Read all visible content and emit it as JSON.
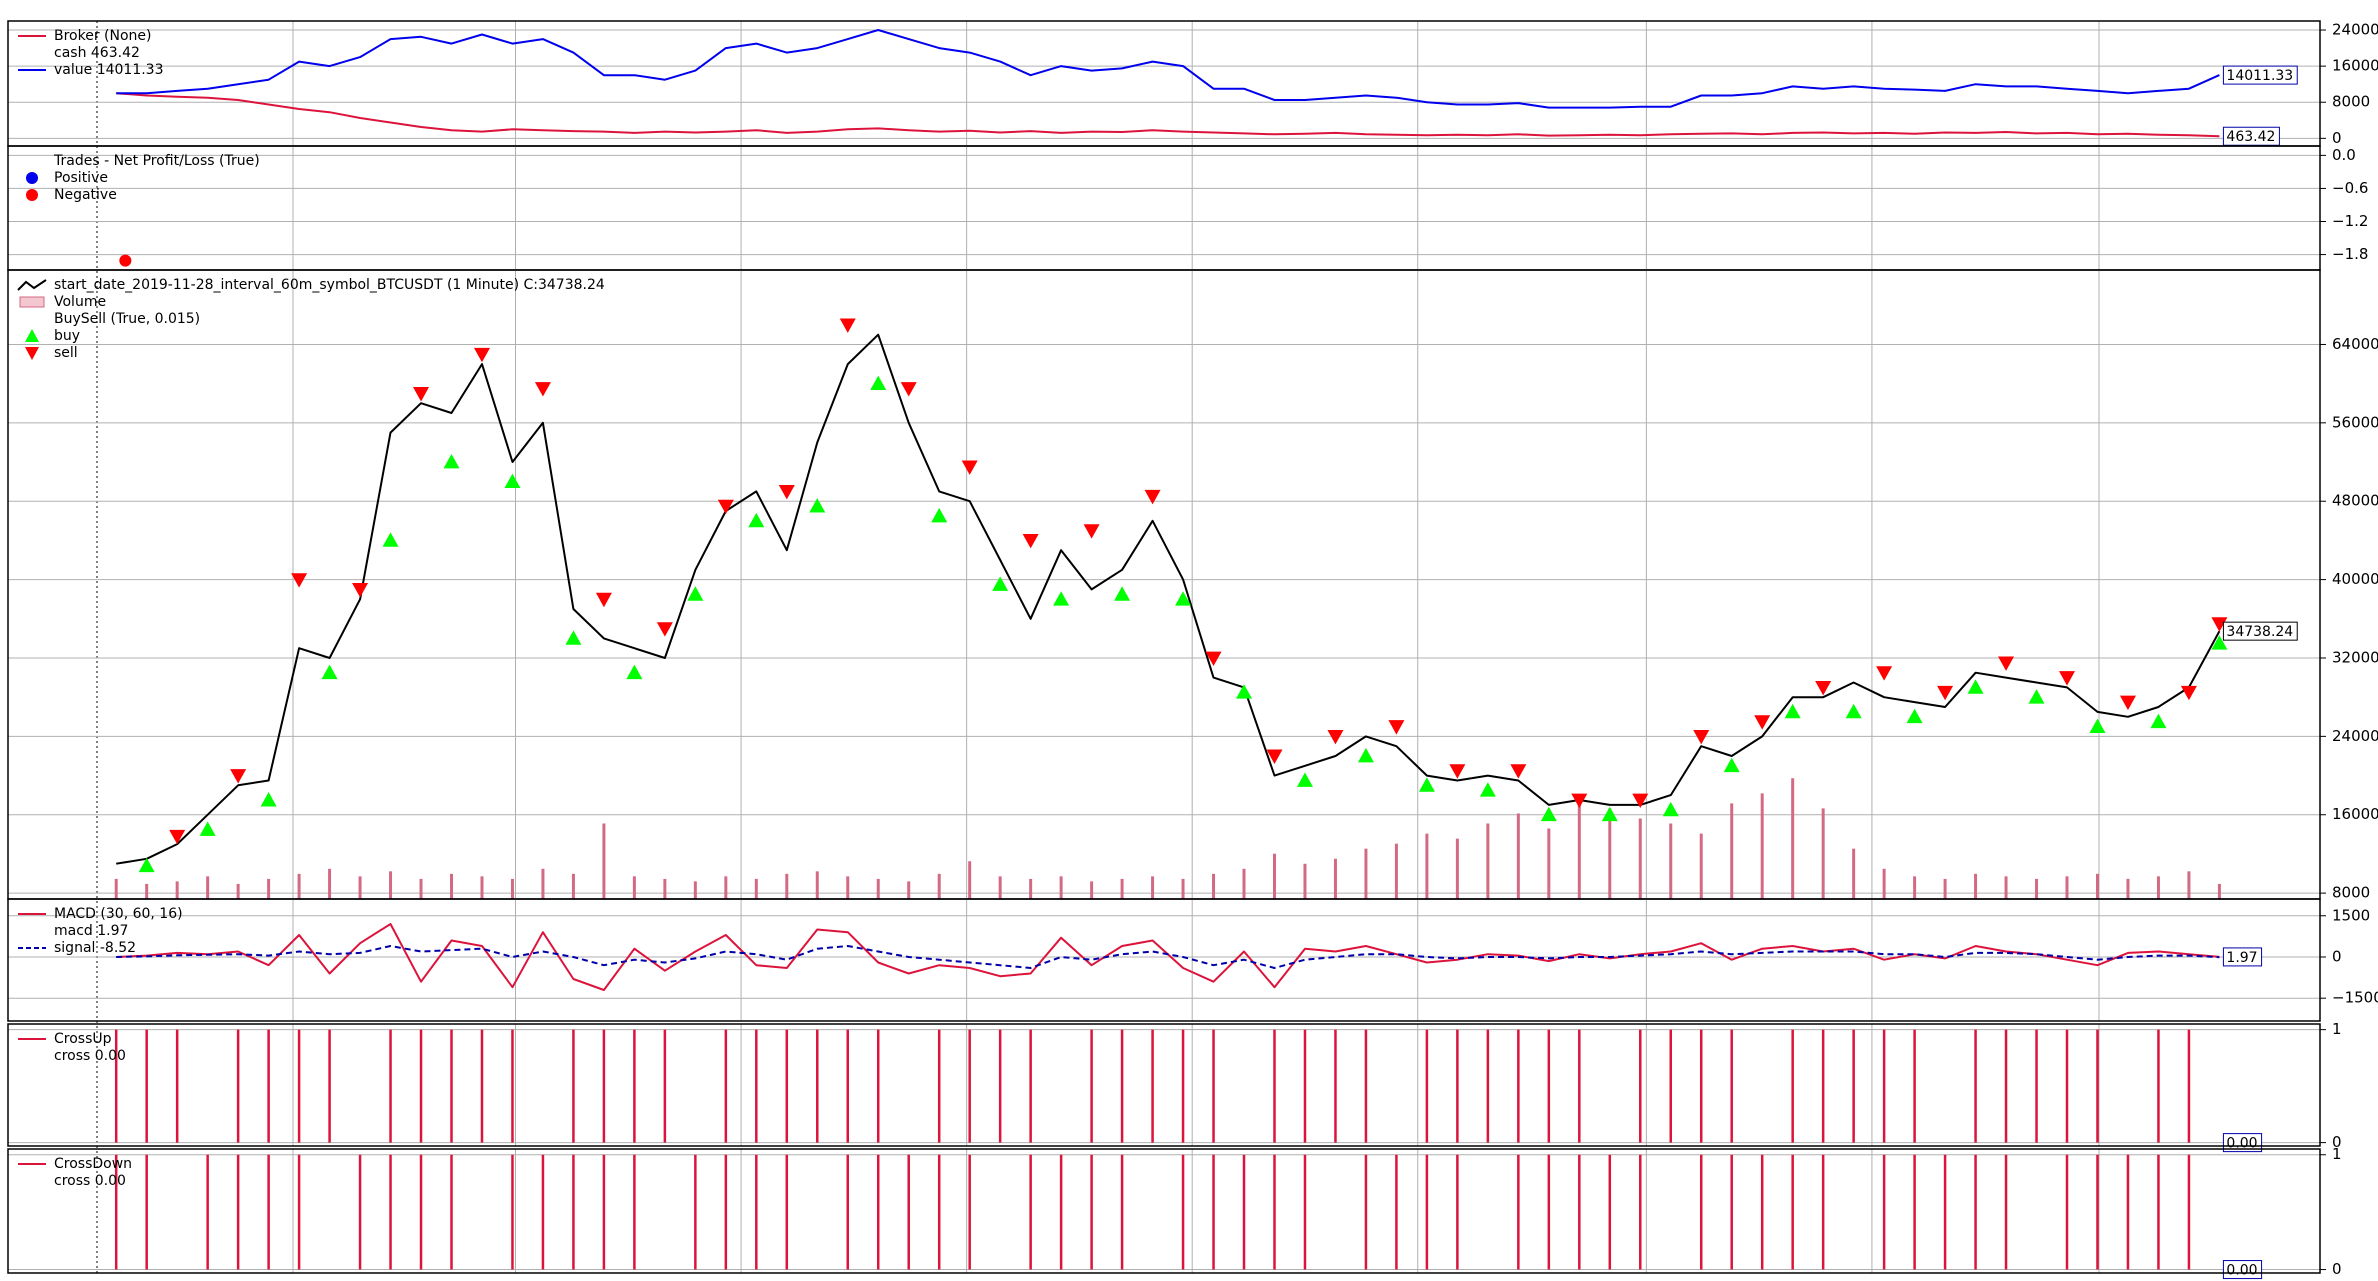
{
  "chart_data": [
    {
      "type": "line",
      "xlim": [
        -3.55,
        72.3
      ],
      "xticks": [
        5.8,
        13.1,
        20.5,
        27.9,
        35.3,
        42.7,
        50.2,
        57.6,
        65.05
      ],
      "ylim": [
        -1700,
        26000
      ],
      "yticks": [
        0,
        8000,
        16000,
        24000
      ],
      "grid": true,
      "series": [
        {
          "legend_title": "Broker (None)",
          "name": "cash 463.42",
          "color": "#dc143c",
          "tag": true,
          "values": [
            10000,
            9500,
            9200,
            9000,
            8500,
            7500,
            6500,
            5800,
            4500,
            3500,
            2500,
            1800,
            1500,
            2000,
            1800,
            1600,
            1500,
            1200,
            1500,
            1300,
            1500,
            1800,
            1200,
            1500,
            2000,
            2200,
            1800,
            1500,
            1700,
            1300,
            1600,
            1200,
            1500,
            1400,
            1800,
            1500,
            1300,
            1100,
            900,
            1000,
            1200,
            900,
            800,
            700,
            800,
            700,
            900,
            600,
            700,
            800,
            700,
            900,
            1000,
            1100,
            900,
            1200,
            1300,
            1100,
            1200,
            1000,
            1300,
            1200,
            1400,
            1100,
            1200,
            900,
            1000,
            800,
            700,
            463.42
          ]
        },
        {
          "name": "value 14011.33",
          "color": "#0000ee",
          "tag": true,
          "values": [
            10000,
            10000,
            10500,
            11000,
            12000,
            13000,
            17000,
            16000,
            18000,
            22000,
            22500,
            21000,
            23000,
            21000,
            22000,
            19000,
            14000,
            14000,
            13000,
            15000,
            20000,
            21000,
            19000,
            20000,
            22000,
            24000,
            22000,
            20000,
            19000,
            17000,
            14000,
            16000,
            15000,
            15500,
            17000,
            16000,
            11000,
            11000,
            8500,
            8500,
            9000,
            9500,
            9000,
            8000,
            7500,
            7500,
            7800,
            6800,
            6800,
            6800,
            7000,
            7000,
            9500,
            9500,
            10000,
            11500,
            11000,
            11500,
            11000,
            10800,
            10500,
            12000,
            11500,
            11500,
            11000,
            10500,
            10000,
            10500,
            11000,
            14011.33
          ]
        }
      ]
    },
    {
      "type": "scatter",
      "xlim": [
        -3.55,
        72.3
      ],
      "xticks": [
        5.8,
        13.1,
        20.5,
        27.9,
        35.3,
        42.7,
        50.2,
        57.6,
        65.05
      ],
      "ylim": [
        -2.08,
        0.17
      ],
      "yticks": [
        {
          "value": 0,
          "label": "0.0"
        },
        {
          "value": -0.6,
          "label": "−0.6"
        },
        {
          "value": -1.2,
          "label": "−1.2"
        },
        {
          "value": -1.8,
          "label": "−1.8"
        }
      ],
      "grid": true,
      "series": [
        {
          "legend_title": "Trades - Net Profit/Loss (True)",
          "name": "Positive",
          "color": "#0000ee",
          "x": [],
          "values": []
        },
        {
          "name": "Negative",
          "color": "#ff0000",
          "x": [
            0.3
          ],
          "values": [
            -1.91
          ]
        }
      ]
    },
    {
      "type": "line",
      "xlim": [
        -3.55,
        72.3
      ],
      "xticks": [
        5.8,
        13.1,
        20.5,
        27.9,
        35.3,
        42.7,
        50.2,
        57.6,
        65.05
      ],
      "ylim": [
        7400,
        71600
      ],
      "yticks": [
        8000,
        16000,
        24000,
        32000,
        40000,
        48000,
        56000,
        64000
      ],
      "grid": true,
      "y2lim": [
        0,
        250
      ],
      "series": [
        {
          "name": "start_date_2019-11-28_interval_60m_symbol_BTCUSDT (1 Minute) C:34738.24",
          "color": "#000000",
          "tag": true,
          "values": [
            11000,
            11500,
            13000,
            16000,
            19000,
            19500,
            33000,
            32000,
            38000,
            55000,
            58000,
            57000,
            62000,
            52000,
            56000,
            37000,
            34000,
            33000,
            32000,
            41000,
            47000,
            49000,
            43000,
            54000,
            62000,
            65000,
            56000,
            49000,
            48000,
            42000,
            36000,
            43000,
            39000,
            41000,
            46000,
            40000,
            30000,
            29000,
            20000,
            21000,
            22000,
            24000,
            23000,
            20000,
            19500,
            20000,
            19500,
            17000,
            17500,
            17000,
            17000,
            18000,
            23000,
            22000,
            24000,
            28000,
            28000,
            29500,
            28000,
            27500,
            27000,
            30500,
            30000,
            29500,
            29000,
            26500,
            26000,
            27000,
            29000,
            34738.24
          ]
        },
        {
          "name": "Volume",
          "type": "bar",
          "axis": "y2",
          "color": "#d36a84",
          "values": [
            8,
            6,
            7,
            9,
            6,
            8,
            10,
            12,
            9,
            11,
            8,
            10,
            9,
            8,
            12,
            10,
            30,
            9,
            8,
            7,
            9,
            8,
            10,
            11,
            9,
            8,
            7,
            10,
            15,
            9,
            8,
            9,
            7,
            8,
            9,
            8,
            10,
            12,
            18,
            14,
            16,
            20,
            22,
            26,
            24,
            30,
            34,
            28,
            40,
            36,
            32,
            30,
            26,
            38,
            42,
            48,
            36,
            20,
            12,
            9,
            8,
            10,
            9,
            8,
            9,
            10,
            8,
            9,
            11,
            6
          ]
        },
        {
          "legend_title": "BuySell (True, 0.015)",
          "name": "buy",
          "type": "marker",
          "marker": "triangle-up",
          "color": "#00ff00",
          "values": [
            null,
            10800,
            null,
            14500,
            null,
            17500,
            null,
            30500,
            null,
            44000,
            null,
            52000,
            null,
            50000,
            null,
            34000,
            null,
            30500,
            null,
            38500,
            null,
            46000,
            null,
            47500,
            null,
            60000,
            null,
            46500,
            null,
            39500,
            null,
            38000,
            null,
            38500,
            null,
            38000,
            null,
            28500,
            null,
            19500,
            null,
            22000,
            null,
            19000,
            null,
            18500,
            null,
            16000,
            null,
            16000,
            null,
            16500,
            null,
            21000,
            null,
            26500,
            null,
            26500,
            null,
            26000,
            null,
            29000,
            null,
            28000,
            null,
            25000,
            null,
            25500,
            null,
            33500
          ]
        },
        {
          "name": "sell",
          "type": "marker",
          "marker": "triangle-down",
          "color": "#ff0000",
          "values": [
            null,
            null,
            13800,
            null,
            20000,
            null,
            40000,
            null,
            39000,
            null,
            59000,
            null,
            63000,
            null,
            59500,
            null,
            38000,
            null,
            35000,
            null,
            47500,
            null,
            49000,
            null,
            66000,
            null,
            59500,
            null,
            51500,
            null,
            44000,
            null,
            45000,
            null,
            48500,
            null,
            32000,
            null,
            22000,
            null,
            24000,
            null,
            25000,
            null,
            20500,
            null,
            20500,
            null,
            17500,
            null,
            17500,
            null,
            24000,
            null,
            25500,
            null,
            29000,
            null,
            30500,
            null,
            28500,
            null,
            31500,
            null,
            30000,
            null,
            27500,
            null,
            28500,
            35500
          ]
        }
      ]
    },
    {
      "type": "line",
      "xlim": [
        -3.55,
        72.3
      ],
      "xticks": [
        5.8,
        13.1,
        20.5,
        27.9,
        35.3,
        42.7,
        50.2,
        57.6,
        65.05
      ],
      "ylim": [
        -2330,
        2110
      ],
      "yticks": [
        1500,
        0,
        {
          "value": -1500,
          "label": "−1500"
        }
      ],
      "grid": true,
      "series": [
        {
          "legend_title": "MACD (30, 60, 16)",
          "name": "macd 1.97",
          "color": "#dc143c",
          "tag": true,
          "values": [
            0,
            50,
            150,
            100,
            200,
            -300,
            800,
            -600,
            500,
            1200,
            -900,
            600,
            400,
            -1100,
            900,
            -800,
            -1200,
            300,
            -500,
            200,
            800,
            -300,
            -400,
            1000,
            900,
            -200,
            -600,
            -300,
            -400,
            -700,
            -600,
            700,
            -300,
            400,
            600,
            -400,
            -900,
            200,
            -1100,
            300,
            200,
            400,
            100,
            -200,
            -100,
            100,
            50,
            -150,
            100,
            -50,
            100,
            200,
            500,
            -100,
            300,
            400,
            200,
            300,
            -100,
            100,
            -50,
            400,
            200,
            100,
            -100,
            -300,
            150,
            200,
            100,
            1.97
          ]
        },
        {
          "name": "signal -8.52",
          "color": "#0000aa",
          "dash": true,
          "values": [
            0,
            20,
            60,
            80,
            100,
            50,
            200,
            100,
            150,
            400,
            200,
            250,
            300,
            0,
            200,
            0,
            -300,
            -100,
            -200,
            -50,
            200,
            100,
            -100,
            300,
            400,
            200,
            0,
            -100,
            -200,
            -300,
            -400,
            0,
            -100,
            100,
            200,
            0,
            -300,
            -100,
            -400,
            -100,
            0,
            100,
            100,
            0,
            -50,
            0,
            0,
            -50,
            0,
            0,
            50,
            100,
            200,
            100,
            150,
            200,
            200,
            200,
            100,
            100,
            0,
            150,
            150,
            100,
            0,
            -100,
            0,
            50,
            50,
            -8.52
          ]
        }
      ]
    },
    {
      "type": "bar",
      "xlim": [
        -3.55,
        72.3
      ],
      "xticks": [
        5.8,
        13.1,
        20.5,
        27.9,
        35.3,
        42.7,
        50.2,
        57.6,
        65.05
      ],
      "ylim": [
        -0.03,
        1.05
      ],
      "yticks": [
        0,
        1
      ],
      "grid": true,
      "series": [
        {
          "legend_title": "CrossUp",
          "name": "cross 0.00",
          "color": "#dc143c",
          "last_label": "0.00",
          "values": [
            1,
            1,
            1,
            0,
            1,
            1,
            1,
            1,
            0,
            1,
            1,
            1,
            1,
            1,
            0,
            1,
            1,
            1,
            1,
            0,
            1,
            1,
            1,
            1,
            1,
            1,
            0,
            1,
            1,
            1,
            1,
            0,
            1,
            1,
            1,
            1,
            1,
            0,
            1,
            1,
            1,
            1,
            0,
            1,
            1,
            1,
            1,
            1,
            1,
            0,
            1,
            1,
            1,
            1,
            0,
            1,
            1,
            1,
            1,
            1,
            0,
            1,
            1,
            1,
            1,
            1,
            0,
            1,
            1,
            0
          ]
        }
      ]
    },
    {
      "type": "bar",
      "xlim": [
        -3.55,
        72.3
      ],
      "xticks": [
        5.8,
        13.1,
        20.5,
        27.9,
        35.3,
        42.7,
        50.2,
        57.6,
        65.05
      ],
      "ylim": [
        -0.03,
        1.05
      ],
      "yticks": [
        0,
        1
      ],
      "grid": true,
      "series": [
        {
          "legend_title": "CrossDown",
          "name": "cross 0.00",
          "color": "#dc143c",
          "last_label": "0.00",
          "values": [
            1,
            1,
            0,
            1,
            1,
            1,
            1,
            0,
            1,
            1,
            1,
            1,
            0,
            1,
            1,
            1,
            1,
            1,
            0,
            1,
            1,
            1,
            1,
            0,
            1,
            1,
            1,
            1,
            1,
            0,
            1,
            1,
            1,
            1,
            0,
            1,
            1,
            1,
            1,
            1,
            0,
            1,
            1,
            1,
            1,
            0,
            1,
            1,
            1,
            1,
            1,
            0,
            1,
            1,
            1,
            1,
            1,
            0,
            1,
            1,
            1,
            1,
            1,
            0,
            1,
            1,
            1,
            1,
            1,
            0
          ]
        }
      ]
    }
  ]
}
